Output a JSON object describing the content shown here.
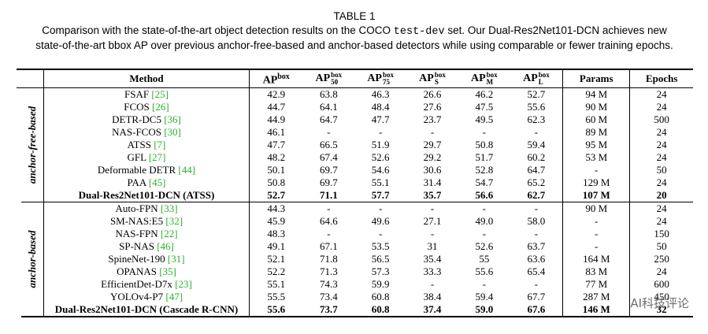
{
  "caption": {
    "title": "TABLE 1",
    "line1_pre": "Comparison with the state-of-the-art object detection results on the COCO",
    "line1_mono": "test-dev",
    "line1_post": "set. Our Dual-Res2Net101-DCN achieves new",
    "line2": "state-of-the-art bbox AP over previous anchor-free-based and anchor-based detectors while using comparable or fewer training epochs."
  },
  "headers": {
    "method": "Method",
    "ap_base": "AP",
    "ap_box": "box",
    "sub_50": "50",
    "sub_75": "75",
    "sub_s": "S",
    "sub_m": "M",
    "sub_l": "L",
    "params": "Params",
    "epochs": "Epochs"
  },
  "groups": [
    {
      "label": "anchor-free-based",
      "rows": [
        {
          "name": "FSAF",
          "ref": "[25]",
          "v": [
            "42.9",
            "63.8",
            "46.3",
            "26.6",
            "46.2",
            "52.7",
            "94 M",
            "24"
          ]
        },
        {
          "name": "FCOS",
          "ref": "[26]",
          "v": [
            "44.7",
            "64.1",
            "48.4",
            "27.6",
            "47.5",
            "55.6",
            "90 M",
            "24"
          ]
        },
        {
          "name": "DETR-DC5",
          "ref": "[36]",
          "v": [
            "44.9",
            "64.7",
            "47.7",
            "23.7",
            "49.5",
            "62.3",
            "60 M",
            "500"
          ]
        },
        {
          "name": "NAS-FCOS",
          "ref": "[30]",
          "v": [
            "46.1",
            "-",
            "-",
            "-",
            "-",
            "-",
            "89 M",
            "24"
          ]
        },
        {
          "name": "ATSS",
          "ref": "[7]",
          "v": [
            "47.7",
            "66.5",
            "51.9",
            "29.7",
            "50.8",
            "59.4",
            "95 M",
            "24"
          ]
        },
        {
          "name": "GFL",
          "ref": "[27]",
          "v": [
            "48.2",
            "67.4",
            "52.6",
            "29.2",
            "51.7",
            "60.2",
            "53 M",
            "24"
          ]
        },
        {
          "name": "Deformable DETR",
          "ref": "[44]",
          "v": [
            "50.1",
            "69.7",
            "54.6",
            "30.6",
            "52.8",
            "64.7",
            "-",
            "50"
          ]
        },
        {
          "name": "PAA",
          "ref": "[45]",
          "v": [
            "50.8",
            "69.7",
            "55.1",
            "31.4",
            "54.7",
            "65.2",
            "129 M",
            "24"
          ]
        },
        {
          "name": "Dual-Res2Net101-DCN (ATSS)",
          "ref": "",
          "best": true,
          "v": [
            "52.7",
            "71.1",
            "57.7",
            "35.7",
            "56.6",
            "62.7",
            "107 M",
            "20"
          ]
        }
      ]
    },
    {
      "label": "anchor-based",
      "rows": [
        {
          "name": "Auto-FPN",
          "ref": "[33]",
          "v": [
            "44.3",
            "-",
            "-",
            "-",
            "-",
            "-",
            "90 M",
            "24"
          ]
        },
        {
          "name": "SM-NAS:E5",
          "ref": "[32]",
          "v": [
            "45.9",
            "64.6",
            "49.6",
            "27.1",
            "49.0",
            "58.0",
            "-",
            "24"
          ]
        },
        {
          "name": "NAS-FPN",
          "ref": "[22]",
          "v": [
            "48.3",
            "-",
            "-",
            "-",
            "-",
            "-",
            "-",
            "150"
          ]
        },
        {
          "name": "SP-NAS",
          "ref": "[46]",
          "v": [
            "49.1",
            "67.1",
            "53.5",
            "31",
            "52.6",
            "63.7",
            "-",
            "50"
          ]
        },
        {
          "name": "SpineNet-190",
          "ref": "[31]",
          "v": [
            "52.1",
            "71.8",
            "56.5",
            "35.4",
            "55",
            "63.6",
            "164 M",
            "250"
          ]
        },
        {
          "name": "OPANAS",
          "ref": "[35]",
          "v": [
            "52.2",
            "71.3",
            "57.3",
            "33.3",
            "55.6",
            "65.4",
            "83 M",
            "24"
          ]
        },
        {
          "name": "EfficientDet-D7x",
          "ref": "[23]",
          "v": [
            "55.1",
            "74.3",
            "59.9",
            "-",
            "-",
            "-",
            "77 M",
            "600"
          ]
        },
        {
          "name": "YOLOv4-P7",
          "ref": "[47]",
          "v": [
            "55.5",
            "73.4",
            "60.8",
            "38.4",
            "59.4",
            "67.7",
            "287 M",
            "450"
          ]
        },
        {
          "name": "Dual-Res2Net101-DCN (Cascade R-CNN)",
          "ref": "",
          "best": true,
          "v": [
            "55.6",
            "73.7",
            "60.8",
            "37.4",
            "59.0",
            "67.6",
            "146 M",
            "32"
          ]
        }
      ]
    }
  ],
  "watermark": "AI科技评论",
  "colors": {
    "ref": "#2db02d",
    "text": "#000000",
    "background": "#ffffff"
  }
}
